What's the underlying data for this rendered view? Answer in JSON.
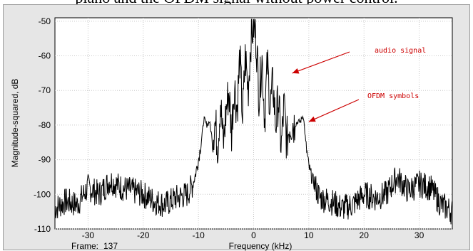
{
  "caption": "piano and the OFDM signal without power control.",
  "status": {
    "frame_label": "Frame:",
    "frame_value": "137"
  },
  "chart_data": {
    "type": "line",
    "title": "",
    "xlabel": "Frequency (kHz)",
    "ylabel": "Magnitude-squared, dB",
    "xlim": [
      -36,
      36
    ],
    "ylim": [
      -110,
      -49
    ],
    "xticks": [
      -30,
      -20,
      -10,
      0,
      10,
      20,
      30
    ],
    "yticks": [
      -50,
      -60,
      -70,
      -80,
      -90,
      -100,
      -110
    ],
    "grid": true,
    "line_color": "#000000",
    "annotations": [
      {
        "text": "audio signal",
        "arrow_to": [
          7,
          -65
        ],
        "color": "#cc0000"
      },
      {
        "text": "OFDM symbols",
        "arrow_to": [
          10,
          -79
        ],
        "color": "#cc0000"
      }
    ],
    "series": [
      {
        "x": [
          -36,
          -34,
          -32,
          -30,
          -28,
          -26,
          -24,
          -22,
          -20,
          -18,
          -16,
          -14,
          -12,
          -11,
          -10.5,
          -10,
          -9.5,
          -9,
          -8.5,
          -8,
          -7.5,
          -7,
          -6.5,
          -6,
          -5.5,
          -5,
          -4.5,
          -4,
          -3.5,
          -3,
          -2.5,
          -2,
          -1.5,
          -1,
          -0.5,
          0,
          0.5,
          1,
          1.5,
          2,
          2.5,
          3,
          3.5,
          4,
          4.5,
          5,
          5.5,
          6,
          6.5,
          7,
          7.5,
          8,
          8.5,
          9,
          9.5,
          10,
          10.5,
          11,
          12,
          14,
          16,
          18,
          20,
          22,
          24,
          26,
          28,
          30,
          32,
          34,
          36
        ],
        "values": [
          -104,
          -102,
          -103,
          -98,
          -100,
          -96,
          -98,
          -99,
          -100,
          -102,
          -103,
          -101,
          -100,
          -97,
          -94,
          -90,
          -85,
          -78,
          -80,
          -79,
          -84,
          -79,
          -86,
          -73,
          -86,
          -76,
          -70,
          -82,
          -68,
          -76,
          -60,
          -78,
          -60,
          -70,
          -55,
          -51,
          -56,
          -72,
          -60,
          -78,
          -62,
          -75,
          -68,
          -80,
          -72,
          -87,
          -74,
          -85,
          -80,
          -79,
          -80,
          -79,
          -79,
          -77,
          -86,
          -92,
          -95,
          -97,
          -101,
          -102,
          -104,
          -103,
          -100,
          -101,
          -100,
          -95,
          -99,
          -97,
          -98,
          -103,
          -105
        ]
      }
    ]
  }
}
